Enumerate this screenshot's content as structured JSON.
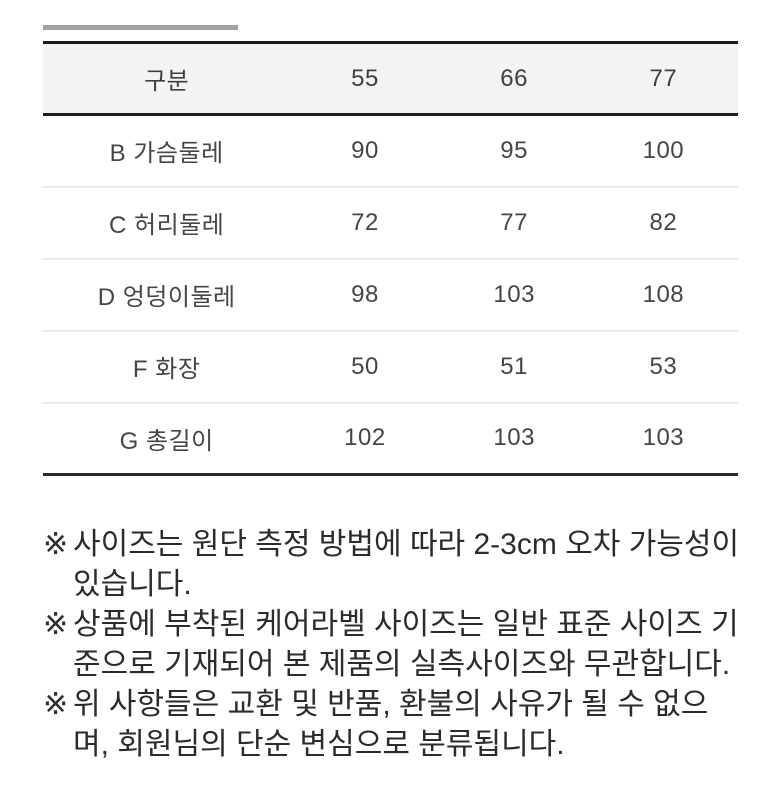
{
  "size_table": {
    "headers": [
      "구분",
      "55",
      "66",
      "77"
    ],
    "rows": [
      {
        "label": "B 가슴둘레",
        "values": [
          "90",
          "95",
          "100"
        ]
      },
      {
        "label": "C 허리둘레",
        "values": [
          "72",
          "77",
          "82"
        ]
      },
      {
        "label": "D 엉덩이둘레",
        "values": [
          "98",
          "103",
          "108"
        ]
      },
      {
        "label": "F 화장",
        "values": [
          "50",
          "51",
          "53"
        ]
      },
      {
        "label": "G 총길이",
        "values": [
          "102",
          "103",
          "103"
        ]
      }
    ]
  },
  "notes": {
    "marker": "※",
    "items": [
      "사이즈는 원단 측정 방법에 따라 2-3cm 오차 가능성이 있습니다.",
      "상품에 부착된 케어라벨 사이즈는 일반 표준 사이즈 기준으로 기재되어 본 제품의 실측사이즈와 무관합니다.",
      "위 사항들은 교환 및 반품, 환불의 사유가 될 수 없으며, 회원님의 단순 변심으로 분류됩니다."
    ]
  },
  "colors": {
    "page_background": "#ffffff",
    "accent_bar": "#a2a2a2",
    "table_border_dark": "#1c1c1c",
    "row_divider": "#eaeaea",
    "header_background": "#f4f3f1",
    "table_text": "#3f3f3f",
    "note_text": "#2b2b2b"
  }
}
